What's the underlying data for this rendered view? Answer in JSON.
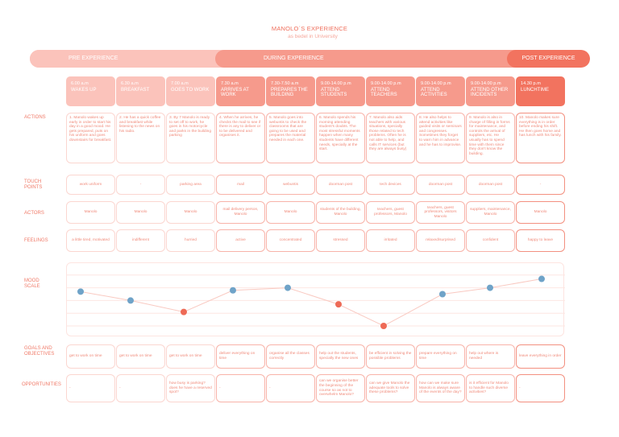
{
  "title": "MANOLO´S EXPERIENCE",
  "subtitle": "as bedel in University",
  "phases": {
    "pre": "PRE EXPERIENCE",
    "during": "DURING EXPERIENCE",
    "post": "POST EXPERIENCE"
  },
  "row_labels": {
    "actions": "ACTIONS",
    "touch": "TOUCH\nPOINTS",
    "actors": "ACTORS",
    "feelings": "FEELINGS",
    "mood": "MOOD\nSCALE",
    "goals": "GOALS AND\nOBJECTIVES",
    "opportunities": "OPPORTUNITIES"
  },
  "colors": {
    "pre_header": "#fbc3bb",
    "during_header": "#f69a8c",
    "post_header": "#f2735f",
    "mood_positive": "#6fa3c8",
    "mood_negative": "#ee6a56",
    "line": "#f9c9c1"
  },
  "columns": [
    {
      "phase": "pre",
      "time": "6.00 a.m",
      "step": "WAKES UP",
      "action": "1. Manolo wakes up early in order to start his day in a good mood. He gets prepared, puts on his uniform and goes downstairs for breakfast.",
      "touch": "work uniform",
      "actors": "Manolo",
      "feeling": "a little tired, motivated",
      "mood": 3.7,
      "mood_tone": "positive",
      "goal": "get to work on time",
      "opportunity": "-"
    },
    {
      "phase": "pre",
      "time": "6.30 a.m",
      "step": "BREAKFAST",
      "action": "2. He has a quick coffee and breakfast while listening to the news on his radio.",
      "touch": "-",
      "actors": "Manolo",
      "feeling": "indifferent",
      "mood": 3.0,
      "mood_tone": "positive",
      "goal": "get to work on time",
      "opportunity": "-"
    },
    {
      "phase": "pre",
      "time": "7.00 a.m",
      "step": "GOES TO WORK",
      "action": "3. By 7 Manolo is ready to set off to work, he goes in his motorcycle and parks in the building parking",
      "touch": "parking area",
      "actors": "Manolo",
      "feeling": "hurried",
      "mood": 2.1,
      "mood_tone": "negative",
      "goal": "get to work on time",
      "opportunity": "how busy is parking? does he have a reserved spot?"
    },
    {
      "phase": "during",
      "time": "7.30 a.m",
      "step": "ARRIVES AT WORK",
      "action": "4. When he arrives, he checks the mail to see if there is any to deliver or to be delivered and organises it.",
      "touch": "mail",
      "actors": "mail delivery person, Manolo",
      "feeling": "active",
      "mood": 3.8,
      "mood_tone": "positive",
      "goal": "deliver everything on time",
      "opportunity": "-"
    },
    {
      "phase": "during",
      "time": "7.30-7.50 a.m",
      "step": "PREPARES THE BUILDING",
      "action": "5. Manolo goes into webuntis to check the classrooms that are going to be used and prepares the material needed in each one.",
      "touch": "webuntis",
      "actors": "Manolo",
      "feeling": "concentrated",
      "mood": 4.0,
      "mood_tone": "positive",
      "goal": "organise all the classes correctly",
      "opportunity": "-"
    },
    {
      "phase": "during",
      "time": "9.00-14.00 p.m",
      "step": "ATTEND STUDENTS",
      "action": "6. Manolo spends his morning attending student's doubts. The most stressful moments happen when many students have different needs, specially at the start.",
      "touch": "doorman post",
      "actors": "students of the building, Manolo",
      "feeling": "stressed",
      "mood": 2.7,
      "mood_tone": "negative",
      "goal": "help out the students, specially the new ones",
      "opportunity": "can we organise better the beginning of the course so as not to overwhelm Manolo?"
    },
    {
      "phase": "during",
      "time": "9.00-14.00 p.m",
      "step": "ATTEND TEACHERS",
      "action": "7. Manolo also aids teachers with various situations, specially those related to tech problems. Often he is not able to help, and calls IT services (but they are always busy)",
      "touch": "tech devices",
      "actors": "teachers, guest professors, Manolo",
      "feeling": "irritated",
      "mood": 1.0,
      "mood_tone": "negative",
      "goal": "be efficient in solving the possible problems",
      "opportunity": "can we give Manolo the adequate tools to solve these problems?"
    },
    {
      "phase": "during",
      "time": "9.00-14.00 p.m",
      "step": "ATTEND ACTIVITIES",
      "action": "8. He also helps to attend activities like guided visits or seminars and congresses. Sometimes they forget to warn him in advance and he has to improvise.",
      "touch": "doorman post",
      "actors": "teachers, guest professors, visitors Manolo",
      "feeling": "relaxed/surprised",
      "mood": 3.5,
      "mood_tone": "positive",
      "goal": "prepare everything on time",
      "opportunity": "how can we make sure Manolo is always aware of the events of the day?"
    },
    {
      "phase": "during",
      "time": "9.00-14.00 p.m",
      "step": "ATTEND OTHER INCIDENTS",
      "action": "9. Manolo is also in charge of filling in forms for maintenance, and controls the arrival of suppliers, etc. He usually has to spend time with them since they don't know the building.",
      "touch": "doorman post",
      "actors": "suppliers, maintenance, Manolo",
      "feeling": "confident",
      "mood": 4.0,
      "mood_tone": "positive",
      "goal": "help out where is needed",
      "opportunity": "is it efficient for Manolo to handle such diverse activities?"
    },
    {
      "phase": "post",
      "time": "14.30 p.m",
      "step": "LUNCHTIME",
      "action": "10. Manolo makes sure everything is in order before ending his shift. He then goes home and has lunch with his family.",
      "touch": "-",
      "actors": "Manolo",
      "feeling": "happy to leave",
      "mood": 4.7,
      "mood_tone": "positive",
      "goal": "leave everything in order",
      "opportunity": "-"
    }
  ]
}
